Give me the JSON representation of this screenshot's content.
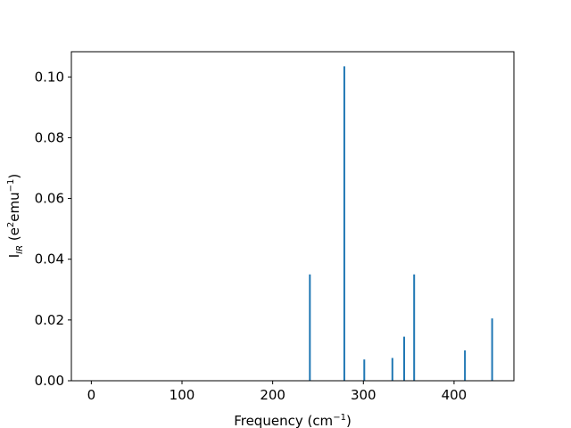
{
  "chart_data": {
    "type": "bar",
    "xlabel": "Frequency (cm⁻¹)",
    "xlabel_parts": {
      "base": "Frequency (cm",
      "sup": "−1",
      "tail": ")"
    },
    "ylabel": "I_IR (e²emu⁻¹)",
    "ylabel_parts": {
      "I": "I",
      "sub": "IR",
      "open": " (e",
      "sup1": "2",
      "mid": "emu",
      "sup2": "−1",
      "close": ")"
    },
    "xlim": [
      -22,
      466
    ],
    "ylim": [
      0,
      0.1083
    ],
    "xticks": [
      0,
      100,
      200,
      300,
      400
    ],
    "xtick_labels": [
      "0",
      "100",
      "200",
      "300",
      "400"
    ],
    "yticks": [
      0.0,
      0.02,
      0.04,
      0.06,
      0.08,
      0.1
    ],
    "ytick_labels": [
      "0.00",
      "0.02",
      "0.04",
      "0.06",
      "0.08",
      "0.10"
    ],
    "series": [
      {
        "x": [
          241,
          279,
          301,
          332,
          345,
          356,
          412,
          442
        ],
        "values": [
          0.035,
          0.1035,
          0.007,
          0.0075,
          0.0145,
          0.035,
          0.01,
          0.0205
        ]
      }
    ],
    "color": "#1f77b4",
    "grid": false
  }
}
